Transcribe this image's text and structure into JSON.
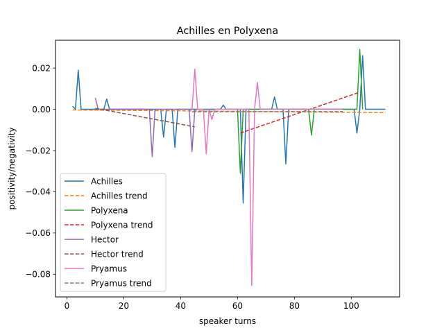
{
  "chart_data": {
    "type": "line",
    "title": "Achilles en Polyxena",
    "xlabel": "speaker turns",
    "ylabel": "positivity/negativity",
    "xlim": [
      -4,
      117
    ],
    "ylim": [
      -0.091,
      0.0335
    ],
    "xticks": [
      0,
      20,
      40,
      60,
      80,
      100
    ],
    "yticks": [
      0.02,
      0.0,
      -0.02,
      -0.04,
      -0.06,
      -0.08
    ],
    "ytick_labels": [
      "0.02",
      "0.00",
      "−0.02",
      "−0.04",
      "−0.06",
      "−0.08"
    ],
    "grid": false,
    "legend_position": "lower-left",
    "series": [
      {
        "name": "Achilles",
        "color": "#1f77b4",
        "style": "solid",
        "points": [
          [
            2,
            0.0015
          ],
          [
            3,
            0.0
          ],
          [
            4,
            0.019
          ],
          [
            5,
            0.0
          ],
          [
            13,
            0.0
          ],
          [
            14,
            0.005
          ],
          [
            15,
            0.0
          ],
          [
            33,
            0.0
          ],
          [
            34,
            -0.0135
          ],
          [
            35,
            0.0
          ],
          [
            37,
            0.0
          ],
          [
            38,
            -0.0185
          ],
          [
            39,
            0.0
          ],
          [
            54,
            0.0
          ],
          [
            55,
            0.002
          ],
          [
            56,
            0.0
          ],
          [
            61,
            0.0
          ],
          [
            62,
            -0.0455
          ],
          [
            63,
            0.0
          ],
          [
            72,
            0.0
          ],
          [
            73,
            0.006
          ],
          [
            74,
            0.0
          ],
          [
            76,
            0.0
          ],
          [
            77,
            -0.0265
          ],
          [
            78,
            0.0
          ],
          [
            101,
            0.0
          ],
          [
            102,
            -0.0115
          ],
          [
            103,
            0.0
          ],
          [
            104,
            0.026
          ],
          [
            105,
            0.0
          ],
          [
            112,
            0.0
          ]
        ]
      },
      {
        "name": "Achilles trend",
        "color": "#ff7f0e",
        "style": "dashed",
        "points": [
          [
            2,
            -0.0003
          ],
          [
            112,
            -0.0016
          ]
        ]
      },
      {
        "name": "Polyxena",
        "color": "#2ca02c",
        "style": "solid",
        "points": [
          [
            60,
            0.0
          ],
          [
            61,
            -0.031
          ],
          [
            62,
            0.0
          ],
          [
            85,
            0.0
          ],
          [
            86,
            -0.0125
          ],
          [
            87,
            0.0
          ],
          [
            102,
            0.0
          ],
          [
            103,
            0.029
          ],
          [
            104,
            0.0
          ]
        ]
      },
      {
        "name": "Polyxena trend",
        "color": "#d62728",
        "style": "dashed",
        "points": [
          [
            61,
            -0.0115
          ],
          [
            103,
            0.0083
          ]
        ]
      },
      {
        "name": "Hector",
        "color": "#9467bd",
        "style": "solid",
        "points": [
          [
            10,
            0.0055
          ],
          [
            11,
            0.0
          ],
          [
            29,
            0.0
          ],
          [
            30,
            -0.023
          ],
          [
            31,
            0.0
          ],
          [
            43,
            0.0
          ],
          [
            44,
            -0.0205
          ],
          [
            45,
            0.0
          ]
        ]
      },
      {
        "name": "Hector trend",
        "color": "#8c564b",
        "style": "dashed",
        "points": [
          [
            10,
            0.0005
          ],
          [
            45,
            -0.0085
          ]
        ]
      },
      {
        "name": "Pryamus",
        "color": "#e377c2",
        "style": "solid",
        "points": [
          [
            44,
            0.0
          ],
          [
            45,
            0.0195
          ],
          [
            46,
            0.0
          ],
          [
            48,
            0.0
          ],
          [
            49,
            -0.0215
          ],
          [
            50,
            0.0
          ],
          [
            51,
            -0.005
          ],
          [
            52,
            0.0
          ],
          [
            64,
            0.0
          ],
          [
            65,
            -0.0855
          ],
          [
            66,
            0.0
          ],
          [
            67,
            0.013
          ],
          [
            68,
            0.0
          ],
          [
            97,
            0.0
          ]
        ]
      },
      {
        "name": "Pryamus trend",
        "color": "#7f7f7f",
        "style": "dashed",
        "points": [
          [
            44,
            -0.0012
          ],
          [
            97,
            -0.0011
          ]
        ]
      }
    ]
  }
}
